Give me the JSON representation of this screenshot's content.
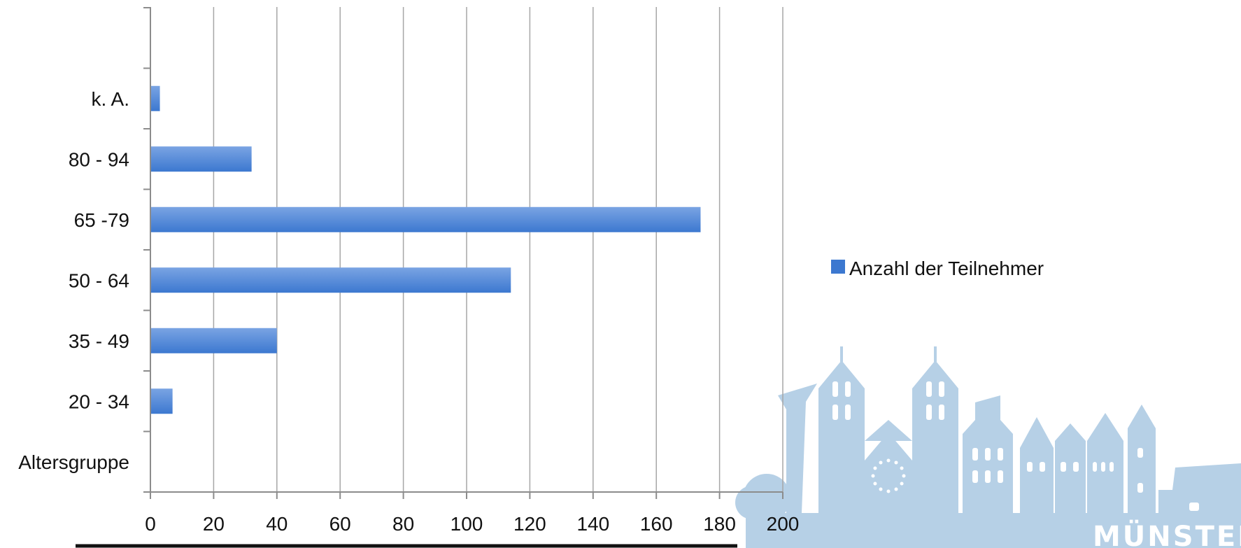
{
  "chart_data": {
    "type": "bar",
    "orientation": "horizontal",
    "categories": [
      "Altersgruppe",
      "20 - 34",
      "35 - 49",
      "50 - 64",
      "65 -79",
      "80 - 94",
      "k. A."
    ],
    "series": [
      {
        "name": "Anzahl der Teilnehmer",
        "values": [
          null,
          7,
          40,
          114,
          174,
          32,
          3
        ]
      }
    ],
    "xlim": [
      0,
      200
    ],
    "x_ticks": [
      0,
      20,
      40,
      60,
      80,
      100,
      120,
      140,
      160,
      180,
      200
    ],
    "grid": true,
    "legend_position": "right",
    "bar_color": "#3c78d0",
    "bar_color_light": "#7aa4e3",
    "grid_color": "#a6a6a6",
    "axis_color": "#8c8c8c"
  },
  "watermark": {
    "text": "MÜNSTER",
    "color": "#b6d0e6"
  }
}
